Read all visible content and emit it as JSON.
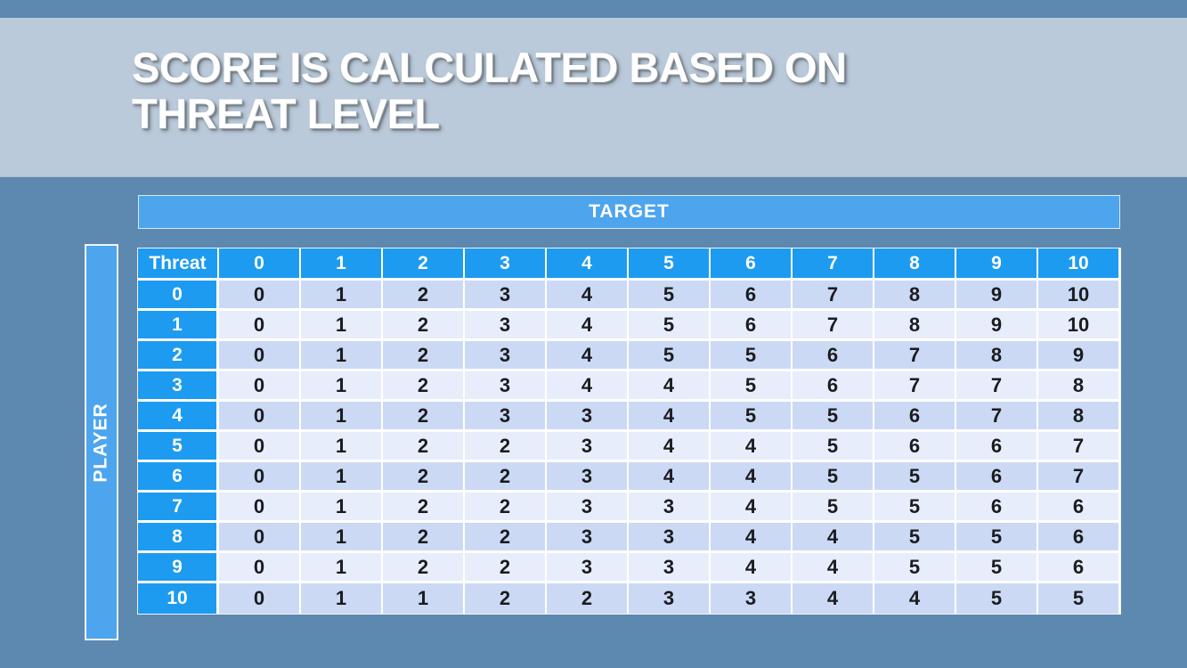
{
  "slide": {
    "title": "SCORE IS CALCULATED BASED ON THREAT LEVEL",
    "target_label": "TARGET",
    "player_label": "PLAYER"
  },
  "table": {
    "corner": "Threat",
    "columns": [
      "0",
      "1",
      "2",
      "3",
      "4",
      "5",
      "6",
      "7",
      "8",
      "9",
      "10"
    ],
    "rows": [
      {
        "player": "0",
        "values": [
          "0",
          "1",
          "2",
          "3",
          "4",
          "5",
          "6",
          "7",
          "8",
          "9",
          "10"
        ]
      },
      {
        "player": "1",
        "values": [
          "0",
          "1",
          "2",
          "3",
          "4",
          "5",
          "6",
          "7",
          "8",
          "9",
          "10"
        ]
      },
      {
        "player": "2",
        "values": [
          "0",
          "1",
          "2",
          "3",
          "4",
          "5",
          "5",
          "6",
          "7",
          "8",
          "9"
        ]
      },
      {
        "player": "3",
        "values": [
          "0",
          "1",
          "2",
          "3",
          "4",
          "4",
          "5",
          "6",
          "7",
          "7",
          "8"
        ]
      },
      {
        "player": "4",
        "values": [
          "0",
          "1",
          "2",
          "3",
          "3",
          "4",
          "5",
          "5",
          "6",
          "7",
          "8"
        ]
      },
      {
        "player": "5",
        "values": [
          "0",
          "1",
          "2",
          "2",
          "3",
          "4",
          "4",
          "5",
          "6",
          "6",
          "7"
        ]
      },
      {
        "player": "6",
        "values": [
          "0",
          "1",
          "2",
          "2",
          "3",
          "4",
          "4",
          "5",
          "5",
          "6",
          "7"
        ]
      },
      {
        "player": "7",
        "values": [
          "0",
          "1",
          "2",
          "2",
          "3",
          "3",
          "4",
          "5",
          "5",
          "6",
          "6"
        ]
      },
      {
        "player": "8",
        "values": [
          "0",
          "1",
          "2",
          "2",
          "3",
          "3",
          "4",
          "4",
          "5",
          "5",
          "6"
        ]
      },
      {
        "player": "9",
        "values": [
          "0",
          "1",
          "2",
          "2",
          "3",
          "3",
          "4",
          "4",
          "5",
          "5",
          "6"
        ]
      },
      {
        "player": "10",
        "values": [
          "0",
          "1",
          "1",
          "2",
          "2",
          "3",
          "3",
          "4",
          "4",
          "5",
          "5"
        ]
      }
    ]
  },
  "theme": {
    "header_blue": "#1d9bf0",
    "bar_blue": "#4da5ee",
    "row_dark": "#cbd9f4",
    "row_light": "#e8edfb"
  },
  "chart_data": {
    "type": "table",
    "title": "Score is calculated based on threat level",
    "x_axis_label": "TARGET",
    "y_axis_label": "PLAYER",
    "corner_label": "Threat",
    "columns": [
      0,
      1,
      2,
      3,
      4,
      5,
      6,
      7,
      8,
      9,
      10
    ],
    "row_labels": [
      0,
      1,
      2,
      3,
      4,
      5,
      6,
      7,
      8,
      9,
      10
    ],
    "matrix": [
      [
        0,
        1,
        2,
        3,
        4,
        5,
        6,
        7,
        8,
        9,
        10
      ],
      [
        0,
        1,
        2,
        3,
        4,
        5,
        6,
        7,
        8,
        9,
        10
      ],
      [
        0,
        1,
        2,
        3,
        4,
        5,
        5,
        6,
        7,
        8,
        9
      ],
      [
        0,
        1,
        2,
        3,
        4,
        4,
        5,
        6,
        7,
        7,
        8
      ],
      [
        0,
        1,
        2,
        3,
        3,
        4,
        5,
        5,
        6,
        7,
        8
      ],
      [
        0,
        1,
        2,
        2,
        3,
        4,
        4,
        5,
        6,
        6,
        7
      ],
      [
        0,
        1,
        2,
        2,
        3,
        4,
        4,
        5,
        5,
        6,
        7
      ],
      [
        0,
        1,
        2,
        2,
        3,
        3,
        4,
        5,
        5,
        6,
        6
      ],
      [
        0,
        1,
        2,
        2,
        3,
        3,
        4,
        4,
        5,
        5,
        6
      ],
      [
        0,
        1,
        2,
        2,
        3,
        3,
        4,
        4,
        5,
        5,
        6
      ],
      [
        0,
        1,
        1,
        2,
        2,
        3,
        3,
        4,
        4,
        5,
        5
      ]
    ]
  }
}
